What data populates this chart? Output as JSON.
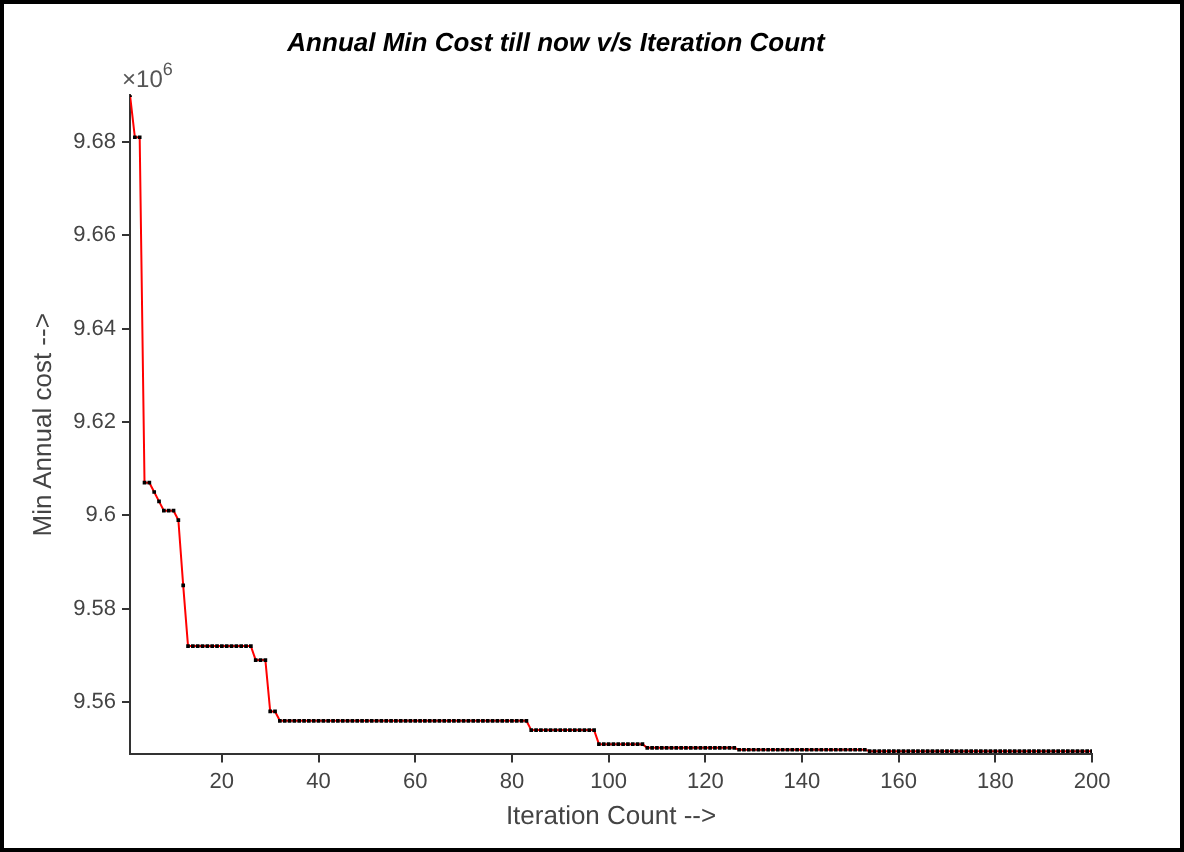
{
  "chart_data": {
    "type": "line",
    "title": "Annual Min Cost till now v/s Iteration Count",
    "xlabel": "Iteration Count -->",
    "ylabel": "Min Annual cost -->",
    "annotations": [
      "×10$^{6}$"
    ],
    "x": [
      1,
      2,
      3,
      4,
      5,
      6,
      7,
      8,
      9,
      10,
      11,
      12,
      13,
      14,
      15,
      16,
      17,
      18,
      19,
      20,
      21,
      22,
      23,
      24,
      25,
      26,
      27,
      28,
      29,
      30,
      31,
      32,
      33,
      34,
      35,
      36,
      37,
      38,
      39,
      40,
      41,
      42,
      43,
      44,
      45,
      46,
      47,
      48,
      49,
      50,
      51,
      52,
      53,
      54,
      55,
      56,
      57,
      58,
      59,
      60,
      61,
      62,
      63,
      64,
      65,
      66,
      67,
      68,
      69,
      70,
      71,
      72,
      73,
      74,
      75,
      76,
      77,
      78,
      79,
      80,
      81,
      82,
      83,
      84,
      85,
      86,
      87,
      88,
      89,
      90,
      91,
      92,
      93,
      94,
      95,
      96,
      97,
      98,
      99,
      100,
      101,
      102,
      103,
      104,
      105,
      106,
      107,
      108,
      109,
      110,
      111,
      112,
      113,
      114,
      115,
      116,
      117,
      118,
      119,
      120,
      121,
      122,
      123,
      124,
      125,
      126,
      127,
      128,
      129,
      130,
      131,
      132,
      133,
      134,
      135,
      136,
      137,
      138,
      139,
      140,
      141,
      142,
      143,
      144,
      145,
      146,
      147,
      148,
      149,
      150,
      151,
      152,
      153,
      154,
      155,
      156,
      157,
      158,
      159,
      160,
      161,
      162,
      163,
      164,
      165,
      166,
      167,
      168,
      169,
      170,
      171,
      172,
      173,
      174,
      175,
      176,
      177,
      178,
      179,
      180,
      181,
      182,
      183,
      184,
      185,
      186,
      187,
      188,
      189,
      190,
      191,
      192,
      193,
      194,
      195,
      196,
      197,
      198,
      199,
      200
    ],
    "series": [
      {
        "color": "#ff0000",
        "values": [
          9.69,
          9.681,
          9.681,
          9.607,
          9.607,
          9.605,
          9.603,
          9.601,
          9.601,
          9.601,
          9.599,
          9.585,
          9.572,
          9.572,
          9.572,
          9.572,
          9.572,
          9.572,
          9.572,
          9.572,
          9.572,
          9.572,
          9.572,
          9.572,
          9.572,
          9.572,
          9.569,
          9.569,
          9.569,
          9.558,
          9.558,
          9.556,
          9.556,
          9.556,
          9.556,
          9.556,
          9.556,
          9.556,
          9.556,
          9.556,
          9.556,
          9.556,
          9.556,
          9.556,
          9.556,
          9.556,
          9.556,
          9.556,
          9.556,
          9.556,
          9.556,
          9.556,
          9.556,
          9.556,
          9.556,
          9.556,
          9.556,
          9.556,
          9.556,
          9.556,
          9.556,
          9.556,
          9.556,
          9.556,
          9.556,
          9.556,
          9.556,
          9.556,
          9.556,
          9.556,
          9.556,
          9.556,
          9.556,
          9.556,
          9.556,
          9.556,
          9.556,
          9.556,
          9.556,
          9.556,
          9.556,
          9.556,
          9.556,
          9.554,
          9.554,
          9.554,
          9.554,
          9.554,
          9.554,
          9.554,
          9.554,
          9.554,
          9.554,
          9.554,
          9.554,
          9.554,
          9.554,
          9.551,
          9.551,
          9.551,
          9.551,
          9.551,
          9.551,
          9.551,
          9.551,
          9.551,
          9.551,
          9.5502,
          9.5502,
          9.5502,
          9.5502,
          9.5502,
          9.5502,
          9.5502,
          9.5502,
          9.5502,
          9.5502,
          9.5502,
          9.5502,
          9.5502,
          9.5502,
          9.5502,
          9.5502,
          9.5502,
          9.5502,
          9.5502,
          9.5498,
          9.5498,
          9.5498,
          9.5498,
          9.5498,
          9.5498,
          9.5498,
          9.5498,
          9.5498,
          9.5498,
          9.5498,
          9.5498,
          9.5498,
          9.5498,
          9.5498,
          9.5498,
          9.5498,
          9.5498,
          9.5498,
          9.5498,
          9.5498,
          9.5498,
          9.5498,
          9.5498,
          9.5498,
          9.5498,
          9.5498,
          9.5495,
          9.5495,
          9.5495,
          9.5495,
          9.5495,
          9.5495,
          9.5495,
          9.5495,
          9.5495,
          9.5495,
          9.5495,
          9.5495,
          9.5495,
          9.5495,
          9.5495,
          9.5495,
          9.5495,
          9.5495,
          9.5495,
          9.5495,
          9.5495,
          9.5495,
          9.5495,
          9.5495,
          9.5495,
          9.5495,
          9.5495,
          9.5495,
          9.5495,
          9.5495,
          9.5495,
          9.5495,
          9.5495,
          9.5495,
          9.5495,
          9.5495,
          9.5495,
          9.5495,
          9.5495,
          9.5495,
          9.5495,
          9.5495,
          9.5495,
          9.5495,
          9.5495,
          9.5495,
          9.5495
        ]
      }
    ],
    "xlim": [
      1,
      200
    ],
    "xticks": [
      20,
      40,
      60,
      80,
      100,
      120,
      140,
      160,
      180,
      200
    ],
    "ylim": [
      9.5488,
      9.69
    ],
    "yticks": [
      9.56,
      9.58,
      9.6,
      9.62,
      9.64,
      9.66,
      9.68
    ],
    "grid": false,
    "legend": false,
    "marker": "square",
    "line_style": "solid"
  }
}
